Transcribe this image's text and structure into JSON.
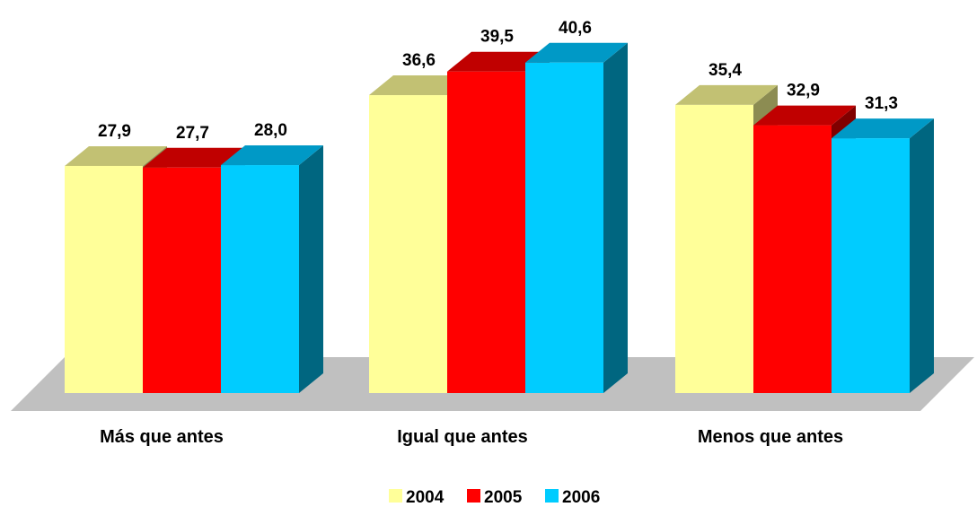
{
  "chart_data": {
    "type": "bar",
    "categories": [
      "Más que antes",
      "Igual que antes",
      "Menos que antes"
    ],
    "series": [
      {
        "name": "2004",
        "values": [
          27.9,
          36.6,
          35.4
        ],
        "labels": [
          "27,9",
          "36,6",
          "35,4"
        ]
      },
      {
        "name": "2005",
        "values": [
          27.7,
          39.5,
          32.9
        ],
        "labels": [
          "27,7",
          "39,5",
          "32,9"
        ]
      },
      {
        "name": "2006",
        "values": [
          28.0,
          40.6,
          31.3
        ],
        "labels": [
          "28,0",
          "40,6",
          "31,3"
        ]
      }
    ],
    "title": "",
    "xlabel": "",
    "ylabel": "",
    "ylim": [
      0,
      45
    ],
    "grid": false,
    "legend": "bottom",
    "style": "3d-clustered-column"
  },
  "colors": {
    "series_front": [
      "#ffff99",
      "#ff0000",
      "#00ccff"
    ],
    "series_top": [
      "#c2c173",
      "#c00000",
      "#0099c6"
    ],
    "series_side": [
      "#8c8c52",
      "#800000",
      "#006680"
    ],
    "floor": "#c0c0c0"
  }
}
